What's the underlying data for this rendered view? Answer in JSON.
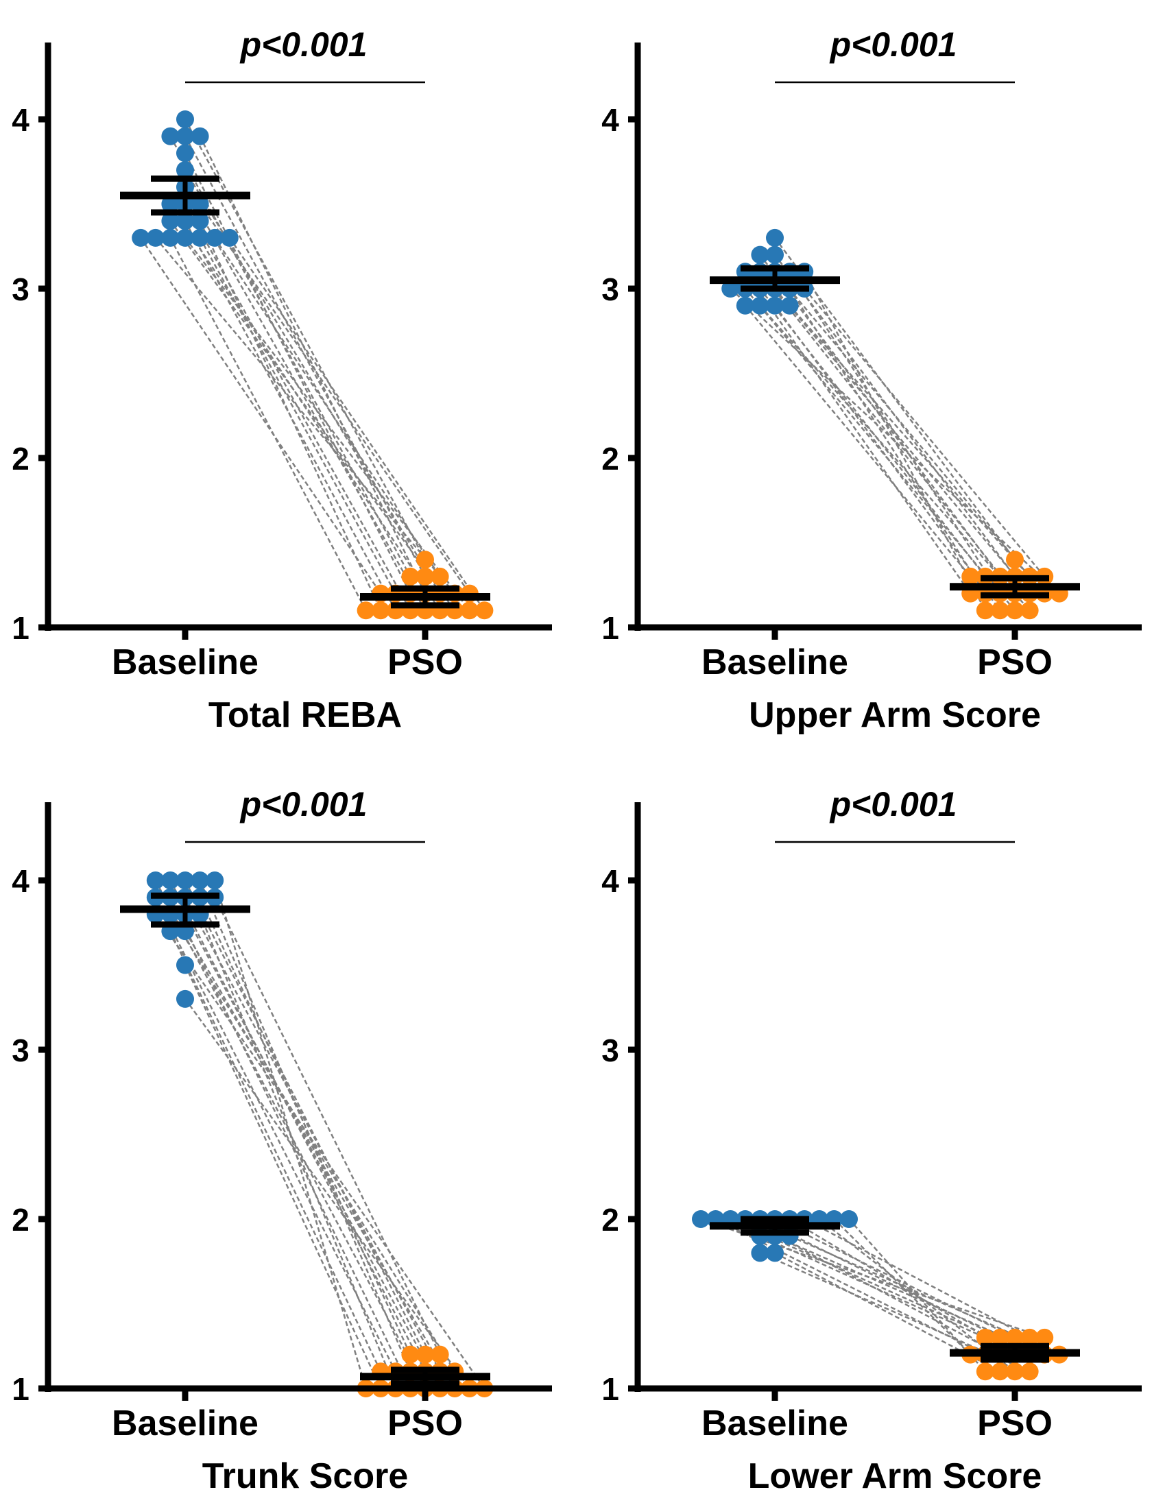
{
  "colors": {
    "baseline": "#2878b5",
    "pso": "#ff8a12",
    "connector": "#808080",
    "axis": "#000000"
  },
  "chart_data": [
    {
      "type": "scatter",
      "title": "",
      "xlabel": "Total REBA",
      "ylabel": "",
      "categories": [
        "Baseline",
        "PSO"
      ],
      "ylim": [
        1,
        4.3
      ],
      "yticks": [
        "1",
        "2",
        "3",
        "4"
      ],
      "annotation": "p<0.001",
      "mean": [
        3.55,
        1.18
      ],
      "error": [
        [
          3.45,
          3.65
        ],
        [
          1.13,
          1.23
        ]
      ],
      "pairs": [
        [
          4.0,
          1.4
        ],
        [
          3.9,
          1.3
        ],
        [
          3.9,
          1.3
        ],
        [
          3.9,
          1.2
        ],
        [
          3.8,
          1.2
        ],
        [
          3.7,
          1.2
        ],
        [
          3.6,
          1.1
        ],
        [
          3.5,
          1.1
        ],
        [
          3.5,
          1.1
        ],
        [
          3.4,
          1.1
        ],
        [
          3.4,
          1.1
        ],
        [
          3.4,
          1.1
        ],
        [
          3.3,
          1.1
        ],
        [
          3.3,
          1.1
        ],
        [
          3.3,
          1.2
        ],
        [
          3.3,
          1.2
        ],
        [
          3.3,
          1.3
        ],
        [
          3.3,
          1.2
        ],
        [
          3.3,
          1.1
        ],
        [
          3.5,
          1.2
        ]
      ]
    },
    {
      "type": "scatter",
      "title": "",
      "xlabel": "Upper Arm Score",
      "ylabel": "",
      "categories": [
        "Baseline",
        "PSO"
      ],
      "ylim": [
        1,
        4.3
      ],
      "yticks": [
        "1",
        "2",
        "3",
        "4"
      ],
      "annotation": "p<0.001",
      "mean": [
        3.05,
        1.24
      ],
      "error": [
        [
          3.0,
          3.12
        ],
        [
          1.19,
          1.29
        ]
      ],
      "pairs": [
        [
          3.3,
          1.4
        ],
        [
          3.2,
          1.3
        ],
        [
          3.2,
          1.3
        ],
        [
          3.1,
          1.3
        ],
        [
          3.1,
          1.2
        ],
        [
          3.1,
          1.2
        ],
        [
          3.0,
          1.2
        ],
        [
          3.0,
          1.3
        ],
        [
          3.0,
          1.2
        ],
        [
          3.0,
          1.1
        ],
        [
          2.9,
          1.1
        ],
        [
          2.9,
          1.1
        ],
        [
          2.9,
          1.2
        ],
        [
          3.0,
          1.3
        ],
        [
          3.1,
          1.2
        ],
        [
          2.9,
          1.3
        ],
        [
          3.0,
          1.2
        ],
        [
          3.1,
          1.1
        ]
      ]
    },
    {
      "type": "scatter",
      "title": "",
      "xlabel": "Trunk Score",
      "ylabel": "",
      "categories": [
        "Baseline",
        "PSO"
      ],
      "ylim": [
        1,
        4.3
      ],
      "yticks": [
        "1",
        "2",
        "3",
        "4"
      ],
      "annotation": "p<0.001",
      "mean": [
        3.83,
        1.07
      ],
      "error": [
        [
          3.74,
          3.91
        ],
        [
          1.03,
          1.11
        ]
      ],
      "pairs": [
        [
          4.0,
          1.2
        ],
        [
          4.0,
          1.1
        ],
        [
          4.0,
          1.1
        ],
        [
          4.0,
          1.0
        ],
        [
          3.9,
          1.1
        ],
        [
          3.9,
          1.0
        ],
        [
          3.9,
          1.2
        ],
        [
          3.9,
          1.1
        ],
        [
          3.8,
          1.0
        ],
        [
          3.8,
          1.1
        ],
        [
          3.8,
          1.0
        ],
        [
          3.7,
          1.0
        ],
        [
          3.7,
          1.1
        ],
        [
          3.5,
          1.0
        ],
        [
          3.3,
          1.0
        ],
        [
          3.9,
          1.2
        ],
        [
          4.0,
          1.0
        ],
        [
          3.8,
          1.0
        ]
      ]
    },
    {
      "type": "scatter",
      "title": "",
      "xlabel": "Lower Arm Score",
      "ylabel": "",
      "categories": [
        "Baseline",
        "PSO"
      ],
      "ylim": [
        1,
        4.3
      ],
      "yticks": [
        "1",
        "2",
        "3",
        "4"
      ],
      "annotation": "p<0.001",
      "mean": [
        1.96,
        1.21
      ],
      "error": [
        [
          1.92,
          2.0
        ],
        [
          1.17,
          1.25
        ]
      ],
      "pairs": [
        [
          2.0,
          1.3
        ],
        [
          2.0,
          1.3
        ],
        [
          2.0,
          1.2
        ],
        [
          2.0,
          1.2
        ],
        [
          2.0,
          1.3
        ],
        [
          2.0,
          1.2
        ],
        [
          2.0,
          1.1
        ],
        [
          2.0,
          1.2
        ],
        [
          1.9,
          1.2
        ],
        [
          1.9,
          1.3
        ],
        [
          1.8,
          1.1
        ],
        [
          1.8,
          1.1
        ],
        [
          2.0,
          1.2
        ],
        [
          2.0,
          1.3
        ],
        [
          2.0,
          1.1
        ],
        [
          1.9,
          1.2
        ]
      ]
    }
  ]
}
